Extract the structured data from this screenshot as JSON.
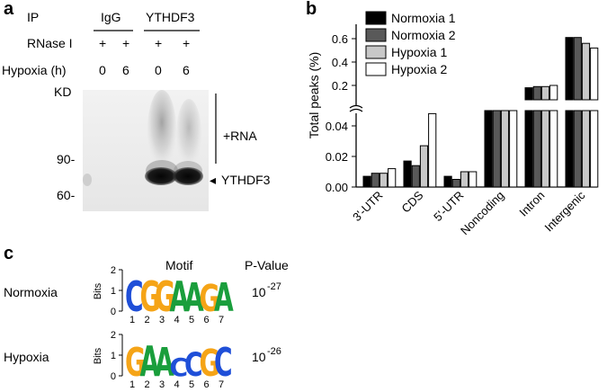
{
  "panel_a": {
    "letter": "a",
    "ip_label": "IP",
    "rnase_label": "RNase I",
    "hypoxia_label": "Hypoxia (h)",
    "kd_label": "KD",
    "groups": [
      "IgG",
      "YTHDF3"
    ],
    "rnase_marks": [
      "+",
      "+",
      "+",
      "+"
    ],
    "hypoxia_values": [
      "0",
      "6",
      "0",
      "6"
    ],
    "markers": [
      "90-",
      "60-"
    ],
    "rna_label": "+RNA",
    "band_label": "YTHDF3",
    "arrow_glyph": "◂"
  },
  "panel_b": {
    "letter": "b",
    "ylabel": "Total peaks (%)",
    "legend": [
      "Normoxia 1",
      "Normoxia 2",
      "Hypoxia 1",
      "Hypoxia 2"
    ],
    "series_colors": [
      "#000000",
      "#595959",
      "#c8c8c8",
      "#ffffff"
    ],
    "upper_ticks": [
      "0.6",
      "0.4",
      "0.2"
    ],
    "lower_ticks": [
      "0.04",
      "0.02",
      "0.00"
    ]
  },
  "chart_data": {
    "type": "bar",
    "categories": [
      "3'-UTR",
      "CDS",
      "5'-UTR",
      "Noncoding",
      "Intron",
      "Intergenic"
    ],
    "series": [
      {
        "name": "Normoxia 1",
        "values": [
          0.007,
          0.017,
          0.007,
          0.07,
          0.23,
          0.66
        ]
      },
      {
        "name": "Normoxia 2",
        "values": [
          0.009,
          0.014,
          0.005,
          0.065,
          0.24,
          0.66
        ]
      },
      {
        "name": "Hypoxia 1",
        "values": [
          0.009,
          0.027,
          0.01,
          0.08,
          0.24,
          0.61
        ]
      },
      {
        "name": "Hypoxia 2",
        "values": [
          0.012,
          0.048,
          0.01,
          0.08,
          0.25,
          0.57
        ]
      }
    ],
    "broken_axis": {
      "lower_range": [
        0,
        0.05
      ],
      "upper_range": [
        0.05,
        0.7
      ]
    },
    "ylabel": "Total peaks (%)",
    "legend_position": "top-left"
  },
  "panel_c": {
    "letter": "c",
    "motif_header": "Motif",
    "pvalue_header": "P-Value",
    "bits_label": "Bits",
    "axis_ticks": [
      "2",
      "1",
      "0"
    ],
    "positions": [
      "1",
      "2",
      "3",
      "4",
      "5",
      "6",
      "7"
    ],
    "rows": [
      {
        "label": "Normoxia",
        "sequence": [
          "C",
          "G",
          "G",
          "A",
          "A",
          "G",
          "A"
        ],
        "pvalue_base": "10",
        "pvalue_exp": "-27"
      },
      {
        "label": "Hypoxia",
        "sequence": [
          "G",
          "A",
          "A",
          "C",
          "C",
          "G",
          "C"
        ],
        "pvalue_base": "10",
        "pvalue_exp": "-26"
      }
    ],
    "base_colors": {
      "A": "#1a9e3c",
      "C": "#1f4fd8",
      "G": "#f5a417",
      "T": "#d8262a"
    }
  }
}
